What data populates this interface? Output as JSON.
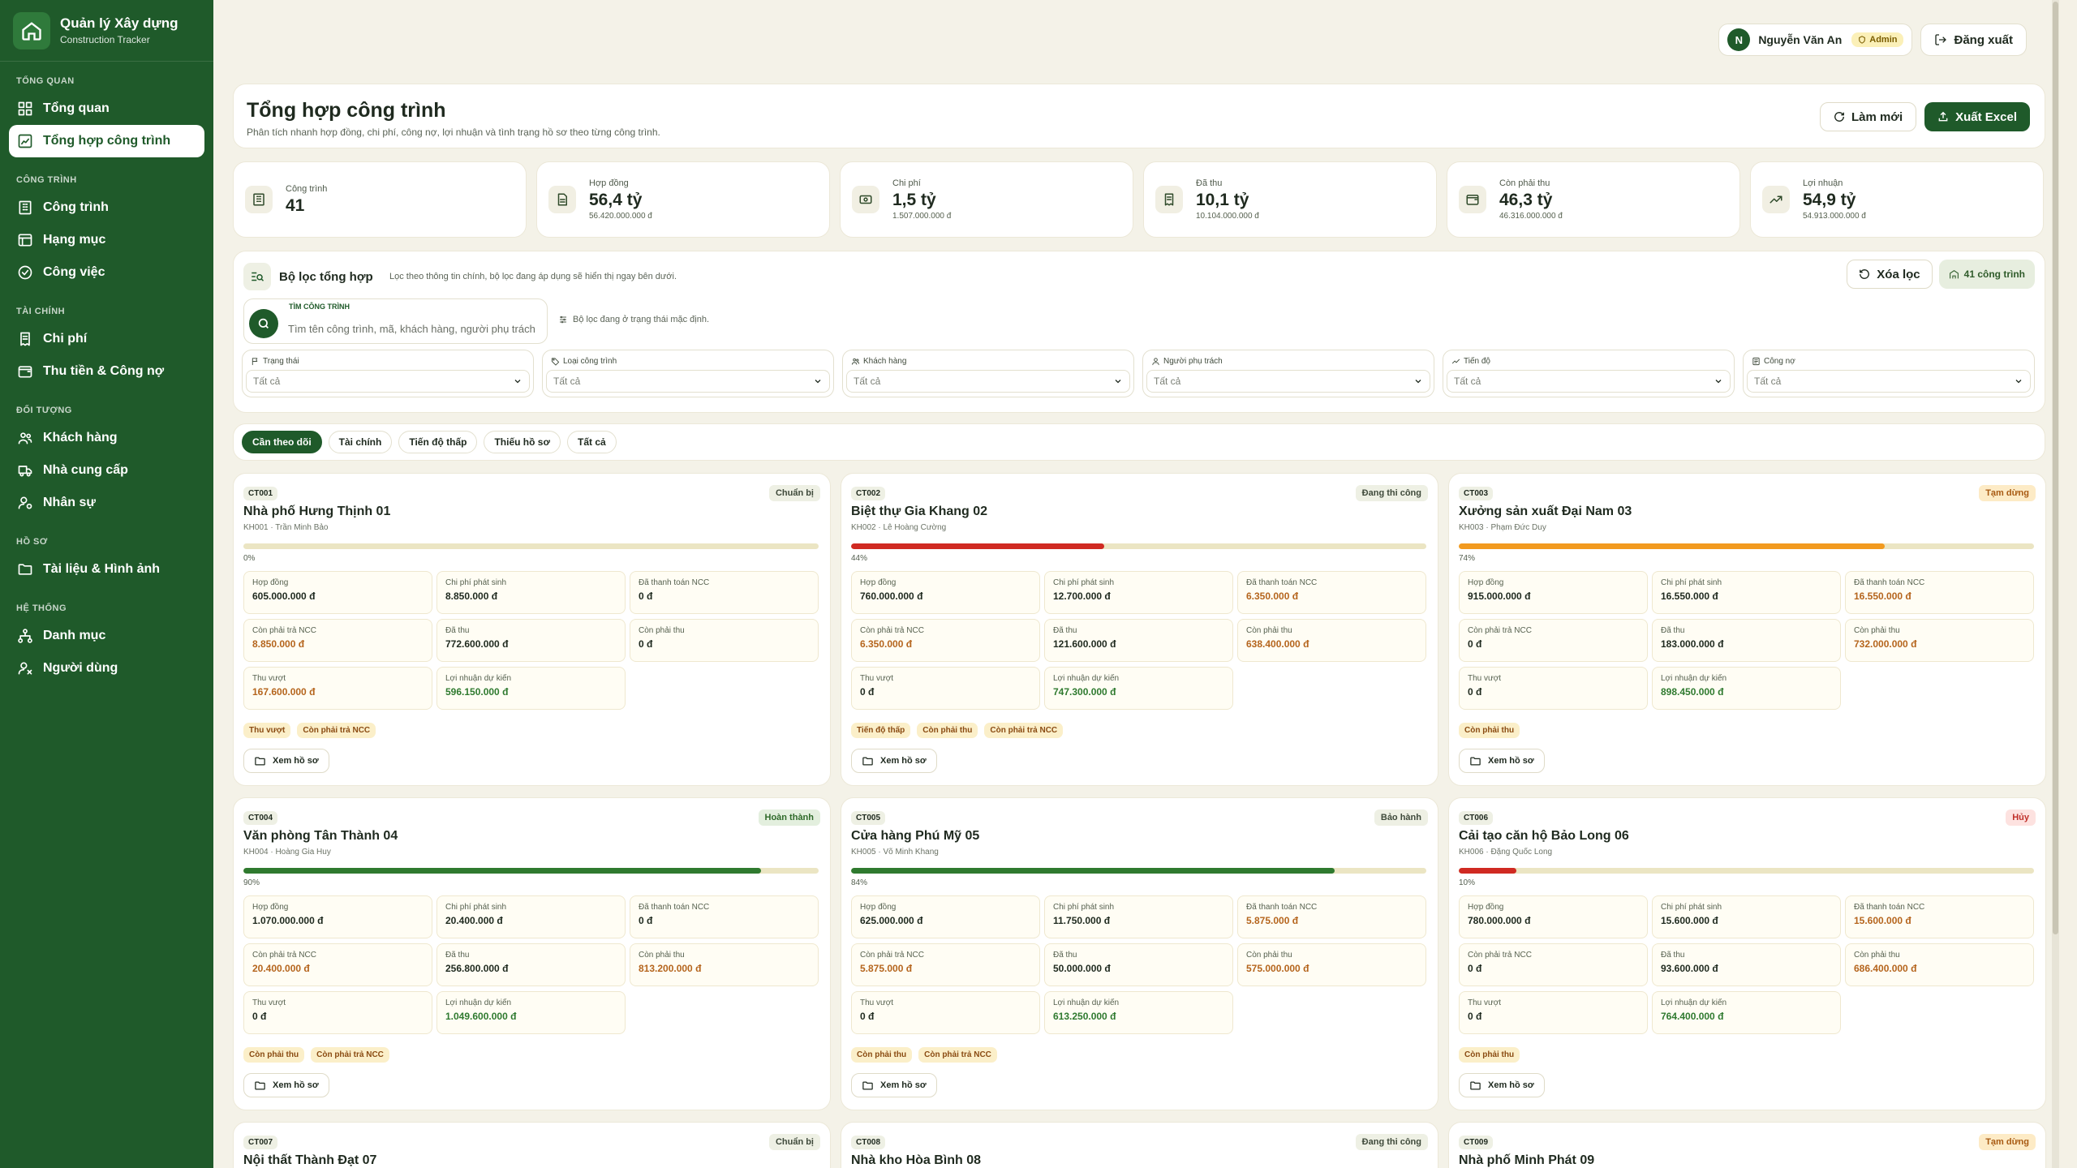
{
  "app": {
    "title": "Quản lý Xây dựng",
    "subtitle": "Construction Tracker"
  },
  "sidebar": {
    "sections": [
      {
        "title": "TỔNG QUAN",
        "items": [
          {
            "label": "Tổng quan",
            "icon": "dashboard-icon"
          },
          {
            "label": "Tổng hợp công trình",
            "icon": "summary-icon",
            "active": true
          }
        ]
      },
      {
        "title": "CÔNG TRÌNH",
        "items": [
          {
            "label": "Công trình",
            "icon": "building-icon"
          },
          {
            "label": "Hạng mục",
            "icon": "list-icon"
          },
          {
            "label": "Công việc",
            "icon": "check-circle-icon"
          }
        ]
      },
      {
        "title": "TÀI CHÍNH",
        "items": [
          {
            "label": "Chi phí",
            "icon": "receipt-icon"
          },
          {
            "label": "Thu tiền & Công nợ",
            "icon": "wallet-icon"
          }
        ]
      },
      {
        "title": "ĐỐI TƯỢNG",
        "items": [
          {
            "label": "Khách hàng",
            "icon": "users-icon"
          },
          {
            "label": "Nhà cung cấp",
            "icon": "truck-icon"
          },
          {
            "label": "Nhân sự",
            "icon": "user-cog-icon"
          }
        ]
      },
      {
        "title": "HỒ SƠ",
        "items": [
          {
            "label": "Tài liệu & Hình ảnh",
            "icon": "folder-icon"
          }
        ]
      },
      {
        "title": "HỆ THỐNG",
        "items": [
          {
            "label": "Danh mục",
            "icon": "tree-icon"
          },
          {
            "label": "Người dùng",
            "icon": "user-settings-icon"
          }
        ]
      }
    ]
  },
  "topbar": {
    "avatar_initial": "N",
    "user_name": "Nguyễn Văn An",
    "role": "Admin",
    "logout_label": "Đăng xuất"
  },
  "page": {
    "title": "Tổng hợp công trình",
    "description": "Phân tích nhanh hợp đồng, chi phí, công nợ, lợi nhuận và tình trạng hồ sơ theo từng công trình.",
    "refresh_label": "Làm mới",
    "export_label": "Xuất Excel"
  },
  "kpis": [
    {
      "label": "Công trình",
      "value": "41",
      "sub": "",
      "icon": "building-icon"
    },
    {
      "label": "Hợp đồng",
      "value": "56,4 tỷ",
      "sub": "56.420.000.000 đ",
      "icon": "document-icon"
    },
    {
      "label": "Chi phí",
      "value": "1,5 tỷ",
      "sub": "1.507.000.000 đ",
      "icon": "cash-icon"
    },
    {
      "label": "Đã thu",
      "value": "10,1 tỷ",
      "sub": "10.104.000.000 đ",
      "icon": "receipt-icon"
    },
    {
      "label": "Còn phải thu",
      "value": "46,3 tỷ",
      "sub": "46.316.000.000 đ",
      "icon": "wallet-icon"
    },
    {
      "label": "Lợi nhuận",
      "value": "54,9 tỷ",
      "sub": "54.913.000.000 đ",
      "icon": "trend-up-icon"
    }
  ],
  "filter": {
    "title": "Bộ lọc tổng hợp",
    "description": "Lọc theo thông tin chính, bộ lọc đang áp dụng sẽ hiển thị ngay bên dưới.",
    "clear_label": "Xóa lọc",
    "count_label": "41 công trình",
    "search_label": "TÌM CÔNG TRÌNH",
    "search_placeholder": "Tìm tên công trình, mã, khách hàng, người phụ trách",
    "search_value": "",
    "note": "Bộ lọc đang ở trạng thái mặc định.",
    "fields": [
      {
        "label": "Trạng thái",
        "value": "Tất cả",
        "icon": "flag-icon"
      },
      {
        "label": "Loại công trình",
        "value": "Tất cả",
        "icon": "tag-icon"
      },
      {
        "label": "Khách hàng",
        "value": "Tất cả",
        "icon": "users-icon"
      },
      {
        "label": "Người phụ trách",
        "value": "Tất cả",
        "icon": "user-icon"
      },
      {
        "label": "Tiến độ",
        "value": "Tất cả",
        "icon": "trend-icon"
      },
      {
        "label": "Công nợ",
        "value": "Tất cả",
        "icon": "ledger-icon"
      }
    ]
  },
  "tabs": [
    {
      "label": "Cần theo dõi",
      "active": true
    },
    {
      "label": "Tài chính"
    },
    {
      "label": "Tiến độ thấp"
    },
    {
      "label": "Thiếu hồ sơ"
    },
    {
      "label": "Tất cả"
    }
  ],
  "metric_labels": {
    "contract": "Hợp đồng",
    "incurred": "Chi phí phát sinh",
    "paid_supplier": "Đã thanh toán NCC",
    "owe_supplier": "Còn phải trả NCC",
    "collected": "Đã thu",
    "receivable": "Còn phải thu",
    "overpaid": "Thu vượt",
    "profit": "Lợi nhuận dự kiến"
  },
  "view_label": "Xem hồ sơ",
  "projects": [
    {
      "code": "CT001",
      "name": "Nhà phố Hưng Thịnh 01",
      "customer": "KH001 · Trần Minh Bảo",
      "status": "Chuẩn bị",
      "status_class": "st-prep",
      "progress": 0,
      "progress_label": "0%",
      "bar_color": "#2f7a2f",
      "contract": "605.000.000 đ",
      "incurred": "8.850.000 đ",
      "paid_supplier": "0 đ",
      "owe_supplier": "8.850.000 đ",
      "collected": "772.600.000 đ",
      "receivable": "0 đ",
      "overpaid": "167.600.000 đ",
      "profit": "596.150.000 đ",
      "chips": [
        "Thu vượt",
        "Còn phải trả NCC"
      ]
    },
    {
      "code": "CT002",
      "name": "Biệt thự Gia Khang 02",
      "customer": "KH002 · Lê Hoàng Cường",
      "status": "Đang thi công",
      "status_class": "st-build",
      "progress": 44,
      "progress_label": "44%",
      "bar_color": "#d02a22",
      "contract": "760.000.000 đ",
      "incurred": "12.700.000 đ",
      "paid_supplier": "6.350.000 đ",
      "owe_supplier": "6.350.000 đ",
      "collected": "121.600.000 đ",
      "receivable": "638.400.000 đ",
      "overpaid": "0 đ",
      "profit": "747.300.000 đ",
      "chips": [
        "Tiến độ thấp",
        "Còn phải thu",
        "Còn phải trả NCC"
      ]
    },
    {
      "code": "CT003",
      "name": "Xưởng sản xuất Đại Nam 03",
      "customer": "KH003 · Phạm Đức Duy",
      "status": "Tạm dừng",
      "status_class": "st-pause",
      "progress": 74,
      "progress_label": "74%",
      "bar_color": "#f29a1f",
      "contract": "915.000.000 đ",
      "incurred": "16.550.000 đ",
      "paid_supplier": "16.550.000 đ",
      "owe_supplier": "0 đ",
      "collected": "183.000.000 đ",
      "receivable": "732.000.000 đ",
      "overpaid": "0 đ",
      "profit": "898.450.000 đ",
      "chips": [
        "Còn phải thu"
      ]
    },
    {
      "code": "CT004",
      "name": "Văn phòng Tân Thành 04",
      "customer": "KH004 · Hoàng Gia Huy",
      "status": "Hoàn thành",
      "status_class": "st-done",
      "progress": 90,
      "progress_label": "90%",
      "bar_color": "#2f7a2f",
      "contract": "1.070.000.000 đ",
      "incurred": "20.400.000 đ",
      "paid_supplier": "0 đ",
      "owe_supplier": "20.400.000 đ",
      "collected": "256.800.000 đ",
      "receivable": "813.200.000 đ",
      "overpaid": "0 đ",
      "profit": "1.049.600.000 đ",
      "chips": [
        "Còn phải thu",
        "Còn phải trả NCC"
      ]
    },
    {
      "code": "CT005",
      "name": "Cửa hàng Phú Mỹ 05",
      "customer": "KH005 · Võ Minh Khang",
      "status": "Bảo hành",
      "status_class": "st-warranty",
      "progress": 84,
      "progress_label": "84%",
      "bar_color": "#2f7a2f",
      "contract": "625.000.000 đ",
      "incurred": "11.750.000 đ",
      "paid_supplier": "5.875.000 đ",
      "owe_supplier": "5.875.000 đ",
      "collected": "50.000.000 đ",
      "receivable": "575.000.000 đ",
      "overpaid": "0 đ",
      "profit": "613.250.000 đ",
      "chips": [
        "Còn phải thu",
        "Còn phải trả NCC"
      ]
    },
    {
      "code": "CT006",
      "name": "Cải tạo căn hộ Bảo Long 06",
      "customer": "KH006 · Đặng Quốc Long",
      "status": "Hủy",
      "status_class": "st-cancel",
      "progress": 10,
      "progress_label": "10%",
      "bar_color": "#d02a22",
      "contract": "780.000.000 đ",
      "incurred": "15.600.000 đ",
      "paid_supplier": "15.600.000 đ",
      "owe_supplier": "0 đ",
      "collected": "93.600.000 đ",
      "receivable": "686.400.000 đ",
      "overpaid": "0 đ",
      "profit": "764.400.000 đ",
      "chips": [
        "Còn phải thu"
      ]
    }
  ],
  "next_projects": [
    {
      "code": "CT007",
      "name": "Nội thất Thành Đạt 07",
      "status": "Chuẩn bị",
      "status_class": "st-prep"
    },
    {
      "code": "CT008",
      "name": "Nhà kho Hòa Bình 08",
      "status": "Đang thi công",
      "status_class": "st-build"
    },
    {
      "code": "CT009",
      "name": "Nhà phố Minh Phát 09",
      "status": "Tạm dừng",
      "status_class": "st-pause"
    }
  ]
}
